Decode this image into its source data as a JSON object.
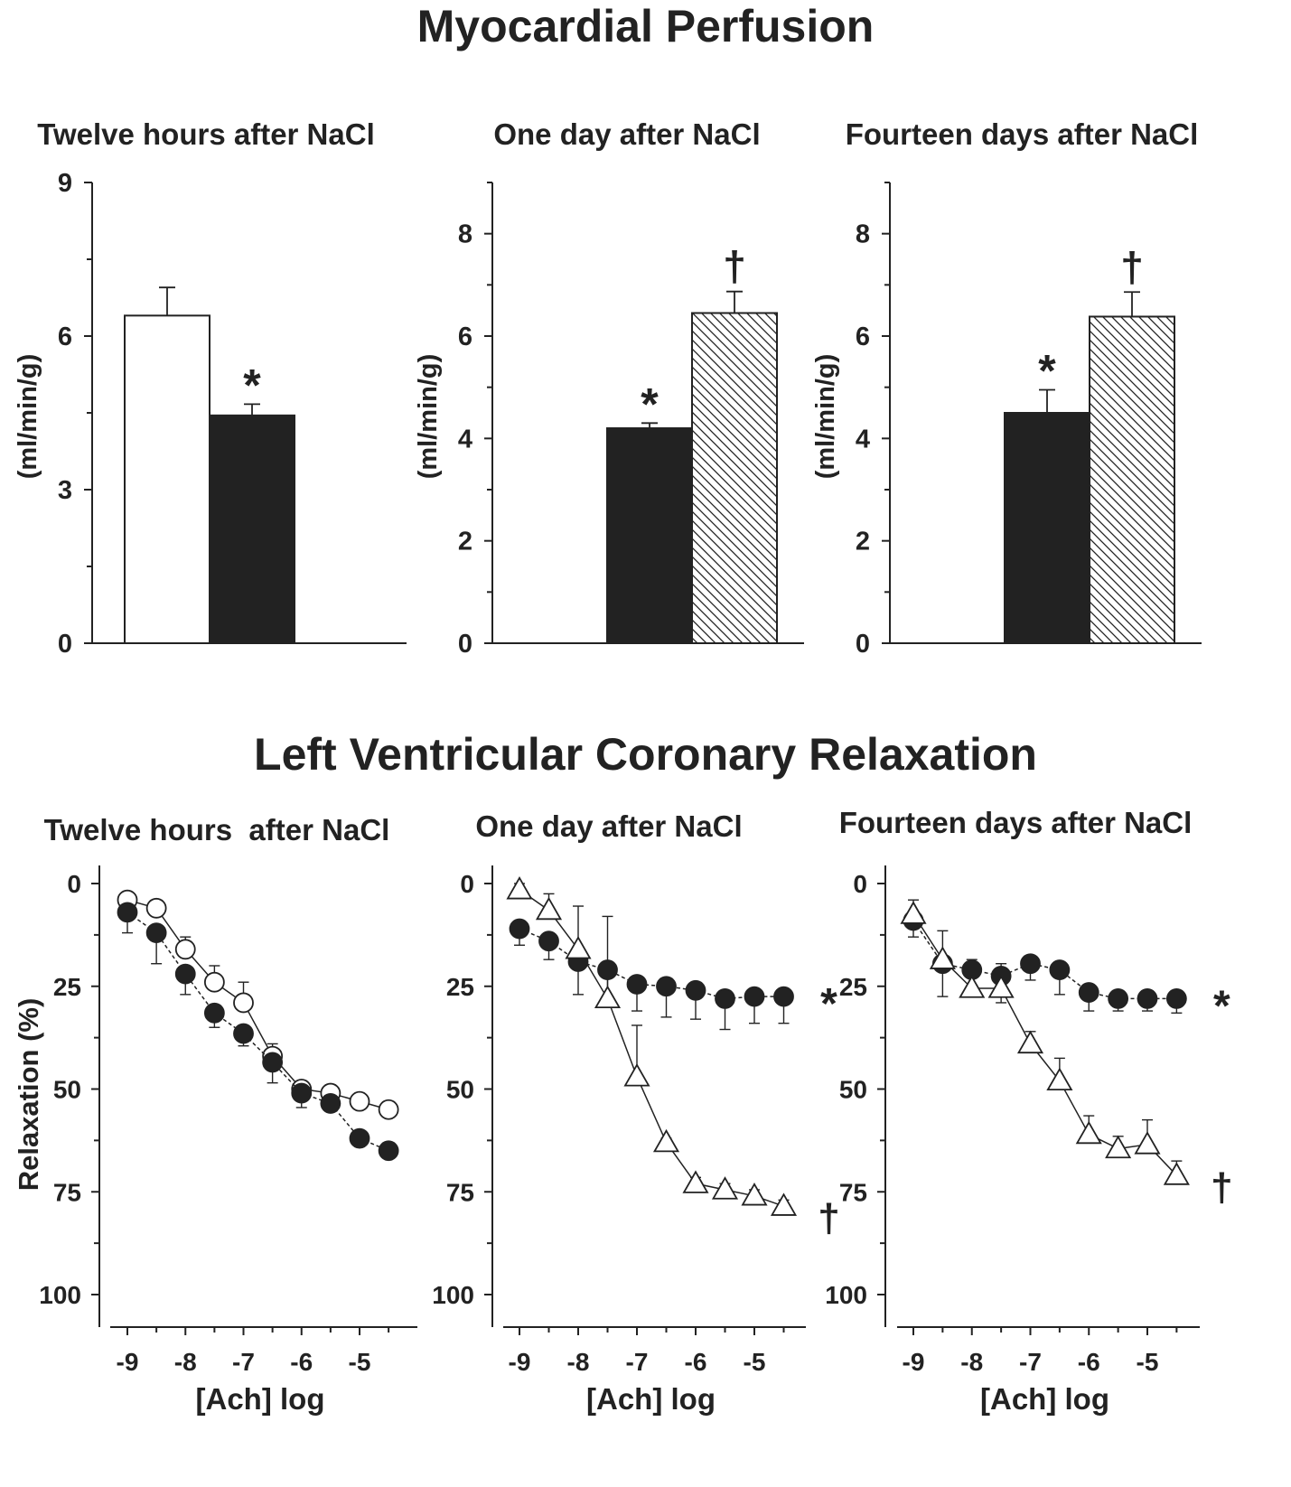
{
  "figure": {
    "top_title": "Myocardial Perfusion",
    "bottom_title": "Left Ventricular Coronary Relaxation"
  },
  "chart_data": [
    {
      "type": "bar",
      "title": "Twelve hours after NaCl",
      "ylabel": "(ml/min/g)",
      "ylim": [
        0,
        9
      ],
      "yticks": [
        "0",
        "3",
        "6",
        "9"
      ],
      "bars": [
        {
          "fill": "white",
          "value": 6.4,
          "error": 0.55,
          "marker": ""
        },
        {
          "fill": "black",
          "value": 4.45,
          "error": 0.22,
          "marker": "*"
        }
      ]
    },
    {
      "type": "bar",
      "title": "One day after NaCl",
      "ylabel": "(ml/min/g)",
      "ylim": [
        0,
        9
      ],
      "yticks": [
        "0",
        "2",
        "4",
        "6",
        "8"
      ],
      "bars": [
        {
          "fill": "black",
          "value": 4.2,
          "error": 0.1,
          "marker": "*"
        },
        {
          "fill": "hatched",
          "value": 6.45,
          "error": 0.42,
          "marker": "†"
        }
      ]
    },
    {
      "type": "bar",
      "title": "Fourteen days after NaCl",
      "ylabel": "(ml/min/g)",
      "ylim": [
        0,
        9
      ],
      "yticks": [
        "0",
        "2",
        "4",
        "6",
        "8"
      ],
      "bars": [
        {
          "fill": "black",
          "value": 4.5,
          "error": 0.45,
          "marker": "*"
        },
        {
          "fill": "hatched",
          "value": 6.38,
          "error": 0.48,
          "marker": "†"
        }
      ]
    },
    {
      "type": "line",
      "title": "Twelve hours  after NaCl",
      "xlabel": "[Ach] log",
      "ylabel": "Relaxation (%)",
      "ylim": [
        0,
        100
      ],
      "y_inverted": true,
      "xlim": [
        -9.3,
        -4.2
      ],
      "xticks": [
        "-9",
        "-8",
        "-7",
        "-6",
        "-5"
      ],
      "yticks": [
        "0",
        "25",
        "50",
        "75",
        "100"
      ],
      "x": [
        -9,
        -8.5,
        -8,
        -7.5,
        -7,
        -6.5,
        -6,
        -5.5,
        -5,
        -4.5
      ],
      "series": [
        {
          "marker": "open-circle",
          "values": [
            4,
            6,
            16,
            24,
            29,
            42,
            50,
            51,
            53,
            55
          ],
          "errors": [
            1,
            1.5,
            3,
            4,
            5,
            3,
            2,
            2,
            2,
            2
          ],
          "end_label": ""
        },
        {
          "marker": "filled-circle",
          "values": [
            7,
            12,
            22,
            31.5,
            36.5,
            43.5,
            51,
            53.5,
            62,
            65
          ],
          "errors": [
            5,
            7.5,
            5,
            3.5,
            3,
            5,
            3.5,
            1.5,
            1,
            1
          ],
          "end_label": ""
        }
      ]
    },
    {
      "type": "line",
      "title": "One day after NaCl",
      "xlabel": "[Ach] log",
      "ylabel": "",
      "ylim": [
        0,
        100
      ],
      "y_inverted": true,
      "xlim": [
        -9.3,
        -4.2
      ],
      "xticks": [
        "-9",
        "-8",
        "-7",
        "-6",
        "-5"
      ],
      "yticks": [
        "0",
        "25",
        "50",
        "75",
        "100"
      ],
      "x": [
        -9,
        -8.5,
        -8,
        -7.5,
        -7,
        -6.5,
        -6,
        -5.5,
        -5,
        -4.5
      ],
      "series": [
        {
          "marker": "filled-circle",
          "values": [
            11,
            14,
            19,
            21,
            24.5,
            25,
            26,
            28,
            27.5,
            27.5
          ],
          "errors": [
            4,
            4.5,
            8,
            7,
            6.5,
            7.5,
            7,
            7.5,
            6.5,
            6.5
          ],
          "end_label": "*"
        },
        {
          "marker": "open-triangle",
          "values": [
            1.5,
            6.5,
            16,
            28,
            47,
            63,
            73,
            74.5,
            76,
            78.5
          ],
          "errors": [
            1.5,
            4,
            10.5,
            20,
            12.5,
            1,
            1.5,
            1.5,
            1.5,
            1.5
          ],
          "end_label": "†"
        }
      ]
    },
    {
      "type": "line",
      "title": "Fourteen days after NaCl",
      "xlabel": "[Ach] log",
      "ylabel": "",
      "ylim": [
        0,
        100
      ],
      "y_inverted": true,
      "xlim": [
        -9.3,
        -4.2
      ],
      "xticks": [
        "-9",
        "-8",
        "-7",
        "-6",
        "-5"
      ],
      "yticks": [
        "0",
        "25",
        "50",
        "75",
        "100"
      ],
      "x": [
        -9,
        -8.5,
        -8,
        -7.5,
        -7,
        -6.5,
        -6,
        -5.5,
        -5,
        -4.5
      ],
      "series": [
        {
          "marker": "filled-circle",
          "values": [
            9,
            19.5,
            21,
            22.5,
            19.5,
            21,
            26.5,
            28,
            28,
            28
          ],
          "errors": [
            4,
            8,
            6.5,
            6.5,
            4,
            6,
            4.5,
            3,
            3,
            3.5
          ],
          "end_label": "*"
        },
        {
          "marker": "open-triangle",
          "values": [
            7.5,
            18.5,
            25.5,
            25.5,
            39,
            48,
            61,
            64.5,
            63.5,
            71
          ],
          "errors": [
            3.5,
            7,
            7,
            6,
            3,
            5.5,
            4.5,
            3,
            6,
            3.5
          ],
          "end_label": "†"
        }
      ]
    }
  ]
}
